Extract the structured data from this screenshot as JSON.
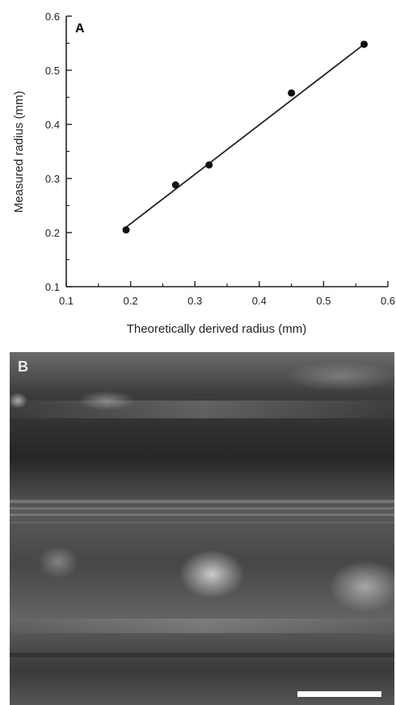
{
  "panel_a_letter": "A",
  "panel_b_letter": "B",
  "chart_data": {
    "type": "scatter",
    "title": "",
    "xlabel": "Theoretically derived radius (mm)",
    "ylabel": "Measured radius (mm)",
    "xlim": [
      0.1,
      0.6
    ],
    "ylim": [
      0.1,
      0.6
    ],
    "xticks": [
      "0.1",
      "0.2",
      "0.3",
      "0.4",
      "0.5",
      "0.6"
    ],
    "yticks": [
      "0.1",
      "0.2",
      "0.3",
      "0.4",
      "0.5",
      "0.6"
    ],
    "grid": false,
    "series": [
      {
        "points": [
          {
            "x": 0.193,
            "y": 0.205
          },
          {
            "x": 0.27,
            "y": 0.288
          },
          {
            "x": 0.322,
            "y": 0.325
          },
          {
            "x": 0.45,
            "y": 0.458
          },
          {
            "x": 0.563,
            "y": 0.548
          }
        ],
        "fit_line": {
          "x": [
            0.193,
            0.563
          ],
          "y": [
            0.21,
            0.548
          ]
        }
      }
    ]
  },
  "colors": {
    "axis": "#222222",
    "marker": "#111111",
    "micrograph_base": "#4a4a4a",
    "scale_bar": "#ffffff"
  }
}
